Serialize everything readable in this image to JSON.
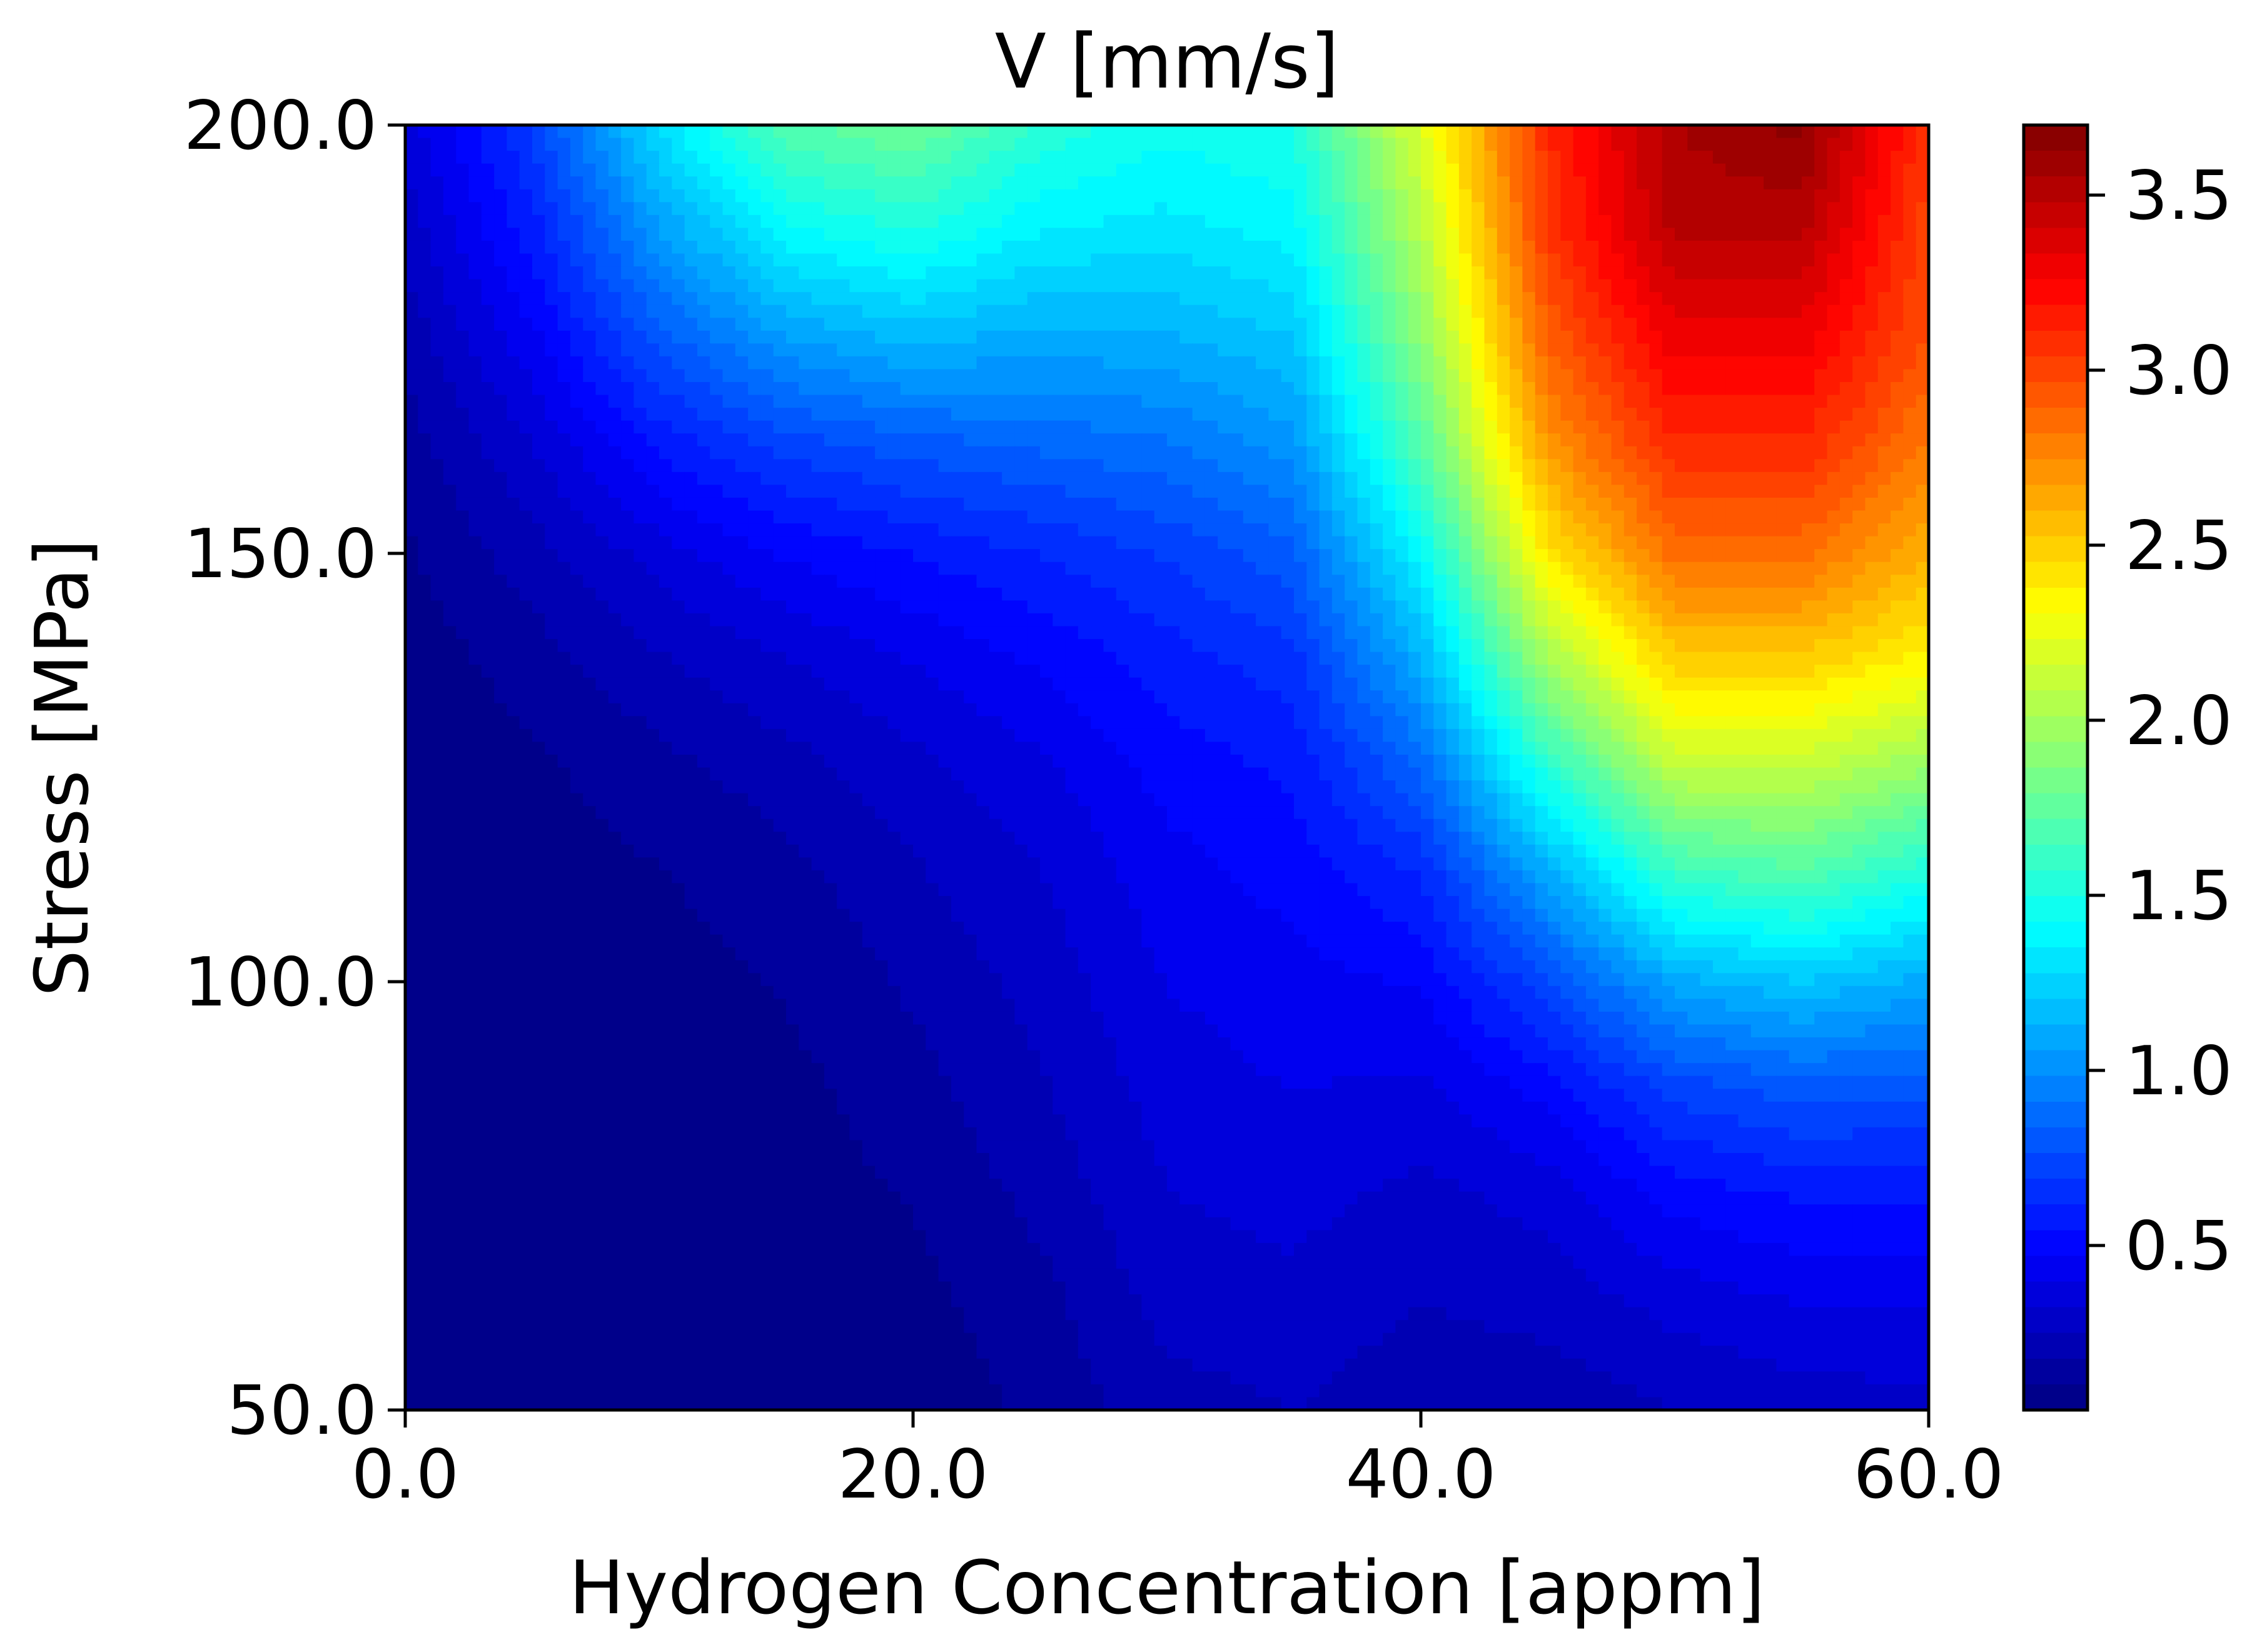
{
  "chart_data": {
    "type": "heatmap",
    "title": "V [mm/s]",
    "xlabel": "Hydrogen Concentration [appm]",
    "ylabel": "Stress [MPa]",
    "xlim": [
      0,
      60
    ],
    "ylim": [
      50,
      200
    ],
    "x_ticks": [
      0,
      20,
      40,
      60
    ],
    "x_tick_labels": [
      "0.0",
      "20.0",
      "40.0",
      "60.0"
    ],
    "y_ticks": [
      50,
      100,
      150,
      200
    ],
    "y_tick_labels": [
      "50.0",
      "100.0",
      "150.0",
      "200.0"
    ],
    "colorbar": {
      "range": [
        0.03,
        3.7
      ],
      "ticks": [
        0.5,
        1.0,
        1.5,
        2.0,
        2.5,
        3.0,
        3.5
      ],
      "tick_labels": [
        "0.5",
        "1.0",
        "1.5",
        "2.0",
        "2.5",
        "3.0",
        "3.5"
      ],
      "colormap": "jet",
      "levels": 50
    },
    "grid": false,
    "x": [
      0,
      5,
      10,
      15,
      20,
      25,
      30,
      35,
      40,
      45,
      50,
      55,
      60
    ],
    "y": [
      50,
      62.5,
      75,
      87.5,
      100,
      112.5,
      125,
      137.5,
      150,
      162.5,
      175,
      187.5,
      200
    ],
    "z": [
      [
        0.03,
        0.03,
        0.03,
        0.03,
        0.05,
        0.12,
        0.22,
        0.25,
        0.2,
        0.2,
        0.25,
        0.28,
        0.3
      ],
      [
        0.03,
        0.03,
        0.03,
        0.04,
        0.08,
        0.15,
        0.28,
        0.3,
        0.25,
        0.28,
        0.35,
        0.4,
        0.4
      ],
      [
        0.03,
        0.03,
        0.04,
        0.06,
        0.11,
        0.2,
        0.32,
        0.35,
        0.3,
        0.35,
        0.5,
        0.55,
        0.55
      ],
      [
        0.03,
        0.03,
        0.05,
        0.08,
        0.15,
        0.24,
        0.36,
        0.4,
        0.38,
        0.5,
        0.72,
        0.8,
        0.78
      ],
      [
        0.03,
        0.04,
        0.07,
        0.11,
        0.19,
        0.28,
        0.4,
        0.44,
        0.48,
        0.75,
        1.1,
        1.2,
        1.1
      ],
      [
        0.04,
        0.06,
        0.1,
        0.15,
        0.24,
        0.32,
        0.44,
        0.5,
        0.62,
        1.1,
        1.6,
        1.7,
        1.5
      ],
      [
        0.04,
        0.09,
        0.15,
        0.22,
        0.3,
        0.38,
        0.5,
        0.56,
        0.85,
        1.55,
        2.1,
        2.1,
        1.95
      ],
      [
        0.06,
        0.14,
        0.24,
        0.32,
        0.4,
        0.48,
        0.58,
        0.66,
        1.12,
        2.0,
        2.5,
        2.5,
        2.35
      ],
      [
        0.09,
        0.22,
        0.36,
        0.48,
        0.55,
        0.62,
        0.7,
        0.82,
        1.4,
        2.4,
        2.85,
        2.85,
        2.6
      ],
      [
        0.14,
        0.32,
        0.56,
        0.72,
        0.8,
        0.85,
        0.9,
        1.02,
        1.7,
        2.7,
        3.1,
        3.1,
        2.8
      ],
      [
        0.2,
        0.45,
        0.8,
        1.05,
        1.15,
        1.1,
        1.12,
        1.2,
        1.9,
        2.9,
        3.3,
        3.3,
        2.95
      ],
      [
        0.28,
        0.58,
        1.05,
        1.4,
        1.5,
        1.35,
        1.32,
        1.38,
        2.05,
        3.05,
        3.5,
        3.5,
        3.0
      ],
      [
        0.35,
        0.7,
        1.3,
        1.7,
        1.8,
        1.55,
        1.45,
        1.5,
        2.2,
        3.1,
        3.55,
        3.65,
        3.05
      ]
    ]
  }
}
